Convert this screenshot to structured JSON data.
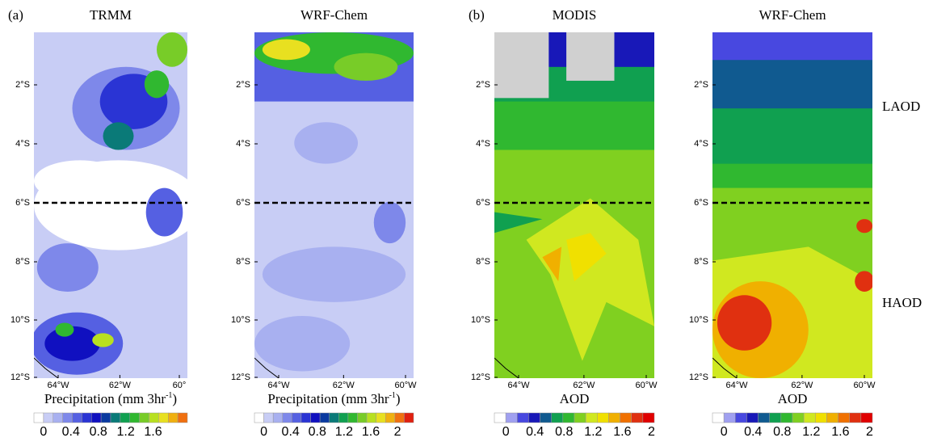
{
  "panel_labels": [
    "(a)",
    "(b)"
  ],
  "side_labels": [
    "LAOD",
    "HAOD"
  ],
  "panels": [
    {
      "title": "TRMM",
      "yticks": [
        "2°S",
        "4°S",
        "6°S",
        "8°S",
        "10°S",
        "12°S"
      ],
      "xticks": [
        "64°W",
        "62°W",
        "60°"
      ],
      "colorbar": {
        "label": [
          "Precipitation (mm 3hr",
          "-1",
          ")"
        ],
        "ticks": [
          0,
          0.4,
          0.8,
          1.2,
          1.6
        ],
        "colors": [
          "#ffffff",
          "#c8cdf5",
          "#a8b0f0",
          "#7e88ea",
          "#5560e2",
          "#2a34d4",
          "#1010c0",
          "#0a3aa0",
          "#0a7a78",
          "#10a050",
          "#30b830",
          "#78cc28",
          "#b8e020",
          "#e8e020",
          "#f0b010",
          "#f07010"
        ]
      }
    },
    {
      "title": "WRF-Chem",
      "yticks": [
        "2°S",
        "4°S",
        "6°S",
        "8°S",
        "10°S",
        "12°S"
      ],
      "xticks": [
        "64°W",
        "62°W",
        "60°W"
      ],
      "colorbar": {
        "label": [
          "Precipitation (mm 3hr",
          "-1",
          ")"
        ],
        "ticks": [
          0,
          0.4,
          0.8,
          1.2,
          1.6,
          2
        ],
        "colors": [
          "#ffffff",
          "#c8cdf5",
          "#a8b0f0",
          "#7e88ea",
          "#5560e2",
          "#2a34d4",
          "#1010c0",
          "#0a3aa0",
          "#0a7a78",
          "#10a050",
          "#30b830",
          "#78cc28",
          "#b8e020",
          "#e8e020",
          "#f0b010",
          "#f07010",
          "#e02010"
        ]
      }
    },
    {
      "title": "MODIS",
      "yticks": [
        "2°S",
        "4°S",
        "6°S",
        "8°S",
        "10°S",
        "12°S"
      ],
      "xticks": [
        "64°W",
        "62°W",
        "60°W"
      ],
      "colorbar": {
        "label": [
          "AOD"
        ],
        "ticks": [
          0,
          0.4,
          0.8,
          1.2,
          1.6,
          2
        ],
        "colors": [
          "#ffffff",
          "#a0a0f0",
          "#4848e0",
          "#1818b8",
          "#105a90",
          "#10a050",
          "#30b830",
          "#80d020",
          "#d0e820",
          "#f0e000",
          "#f0b000",
          "#f07000",
          "#e03010",
          "#e00000"
        ]
      }
    },
    {
      "title": "WRF-Chem",
      "yticks": [
        "2°S",
        "4°S",
        "6°S",
        "8°S",
        "10°S",
        "12°S"
      ],
      "xticks": [
        "64°W",
        "62°W",
        "60°W"
      ],
      "colorbar": {
        "label": [
          "AOD"
        ],
        "ticks": [
          0,
          0.4,
          0.8,
          1.2,
          1.6,
          2
        ],
        "colors": [
          "#ffffff",
          "#a0a0f0",
          "#4848e0",
          "#1818b8",
          "#105a90",
          "#10a050",
          "#30b830",
          "#80d020",
          "#d0e820",
          "#f0e000",
          "#f0b000",
          "#f07000",
          "#e03010",
          "#e00000"
        ]
      }
    }
  ]
}
